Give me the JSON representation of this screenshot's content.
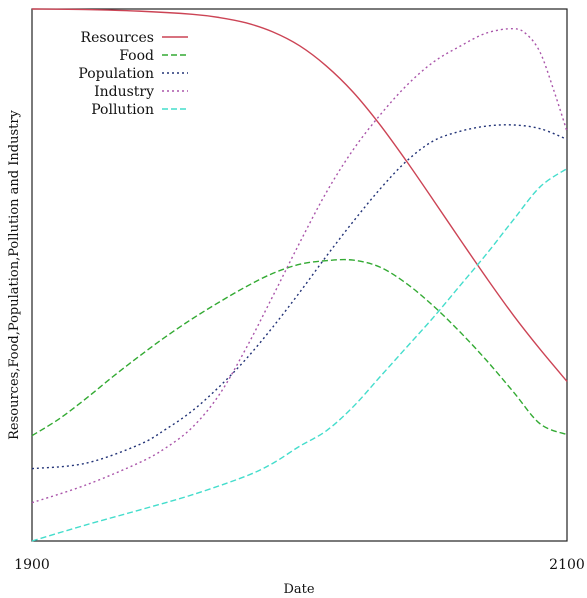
{
  "chart_data": {
    "type": "line",
    "title": "",
    "xlabel": "Date",
    "ylabel": "Resources,Food,Population,Pollution and Industry",
    "xlim": [
      1900,
      2100
    ],
    "ylim": [
      0,
      1
    ],
    "grid": false,
    "legend_position": "top-left",
    "x_ticks": [
      {
        "value": 1900,
        "label": "1900"
      },
      {
        "value": 2100,
        "label": "2100"
      }
    ],
    "y_ticks": [],
    "series": [
      {
        "name": "Resources",
        "color": "#cc4455",
        "dash": "solid",
        "x": [
          1900,
          1920,
          1940,
          1960,
          1970,
          1980,
          1990,
          2000,
          2010,
          2020,
          2030,
          2040,
          2050,
          2060,
          2070,
          2080,
          2090,
          2100
        ],
        "y": [
          1.0,
          0.999,
          0.996,
          0.99,
          0.984,
          0.974,
          0.957,
          0.931,
          0.893,
          0.844,
          0.783,
          0.714,
          0.641,
          0.567,
          0.494,
          0.424,
          0.36,
          0.3
        ]
      },
      {
        "name": "Food",
        "color": "#33aa33",
        "dash": "dashed",
        "x": [
          1900,
          1910,
          1920,
          1930,
          1940,
          1950,
          1960,
          1970,
          1980,
          1990,
          2000,
          2010,
          2020,
          2030,
          2040,
          2050,
          2060,
          2070,
          2080,
          2090,
          2100
        ],
        "y": [
          0.198,
          0.229,
          0.267,
          0.308,
          0.347,
          0.384,
          0.418,
          0.449,
          0.478,
          0.503,
          0.52,
          0.527,
          0.528,
          0.515,
          0.484,
          0.442,
          0.393,
          0.339,
          0.28,
          0.22,
          0.2
        ]
      },
      {
        "name": "Population",
        "color": "#223377",
        "dash": "dotted",
        "x": [
          1900,
          1920,
          1940,
          1950,
          1960,
          1970,
          1980,
          1990,
          2000,
          2010,
          2020,
          2030,
          2040,
          2050,
          2060,
          2070,
          2080,
          2090,
          2100
        ],
        "y": [
          0.136,
          0.146,
          0.181,
          0.21,
          0.245,
          0.29,
          0.342,
          0.402,
          0.467,
          0.535,
          0.6,
          0.661,
          0.714,
          0.752,
          0.77,
          0.78,
          0.782,
          0.775,
          0.755
        ]
      },
      {
        "name": "Industry",
        "color": "#aa55aa",
        "dash": "dotted",
        "x": [
          1900,
          1920,
          1940,
          1950,
          1960,
          1970,
          1980,
          1990,
          2000,
          2010,
          2020,
          2030,
          2040,
          2050,
          2060,
          2070,
          2080,
          2085,
          2090,
          2095,
          2100
        ],
        "y": [
          0.072,
          0.105,
          0.147,
          0.175,
          0.214,
          0.275,
          0.362,
          0.46,
          0.56,
          0.655,
          0.735,
          0.8,
          0.856,
          0.9,
          0.93,
          0.955,
          0.963,
          0.952,
          0.918,
          0.848,
          0.77
        ]
      },
      {
        "name": "Pollution",
        "color": "#44ddcc",
        "dash": "dashed",
        "x": [
          1900,
          1920,
          1940,
          1960,
          1980,
          1990,
          2000,
          2010,
          2020,
          2030,
          2040,
          2050,
          2060,
          2070,
          2080,
          2090,
          2100
        ],
        "y": [
          0.0,
          0.03,
          0.058,
          0.087,
          0.122,
          0.146,
          0.178,
          0.207,
          0.252,
          0.308,
          0.364,
          0.42,
          0.48,
          0.54,
          0.604,
          0.666,
          0.7
        ]
      }
    ]
  }
}
